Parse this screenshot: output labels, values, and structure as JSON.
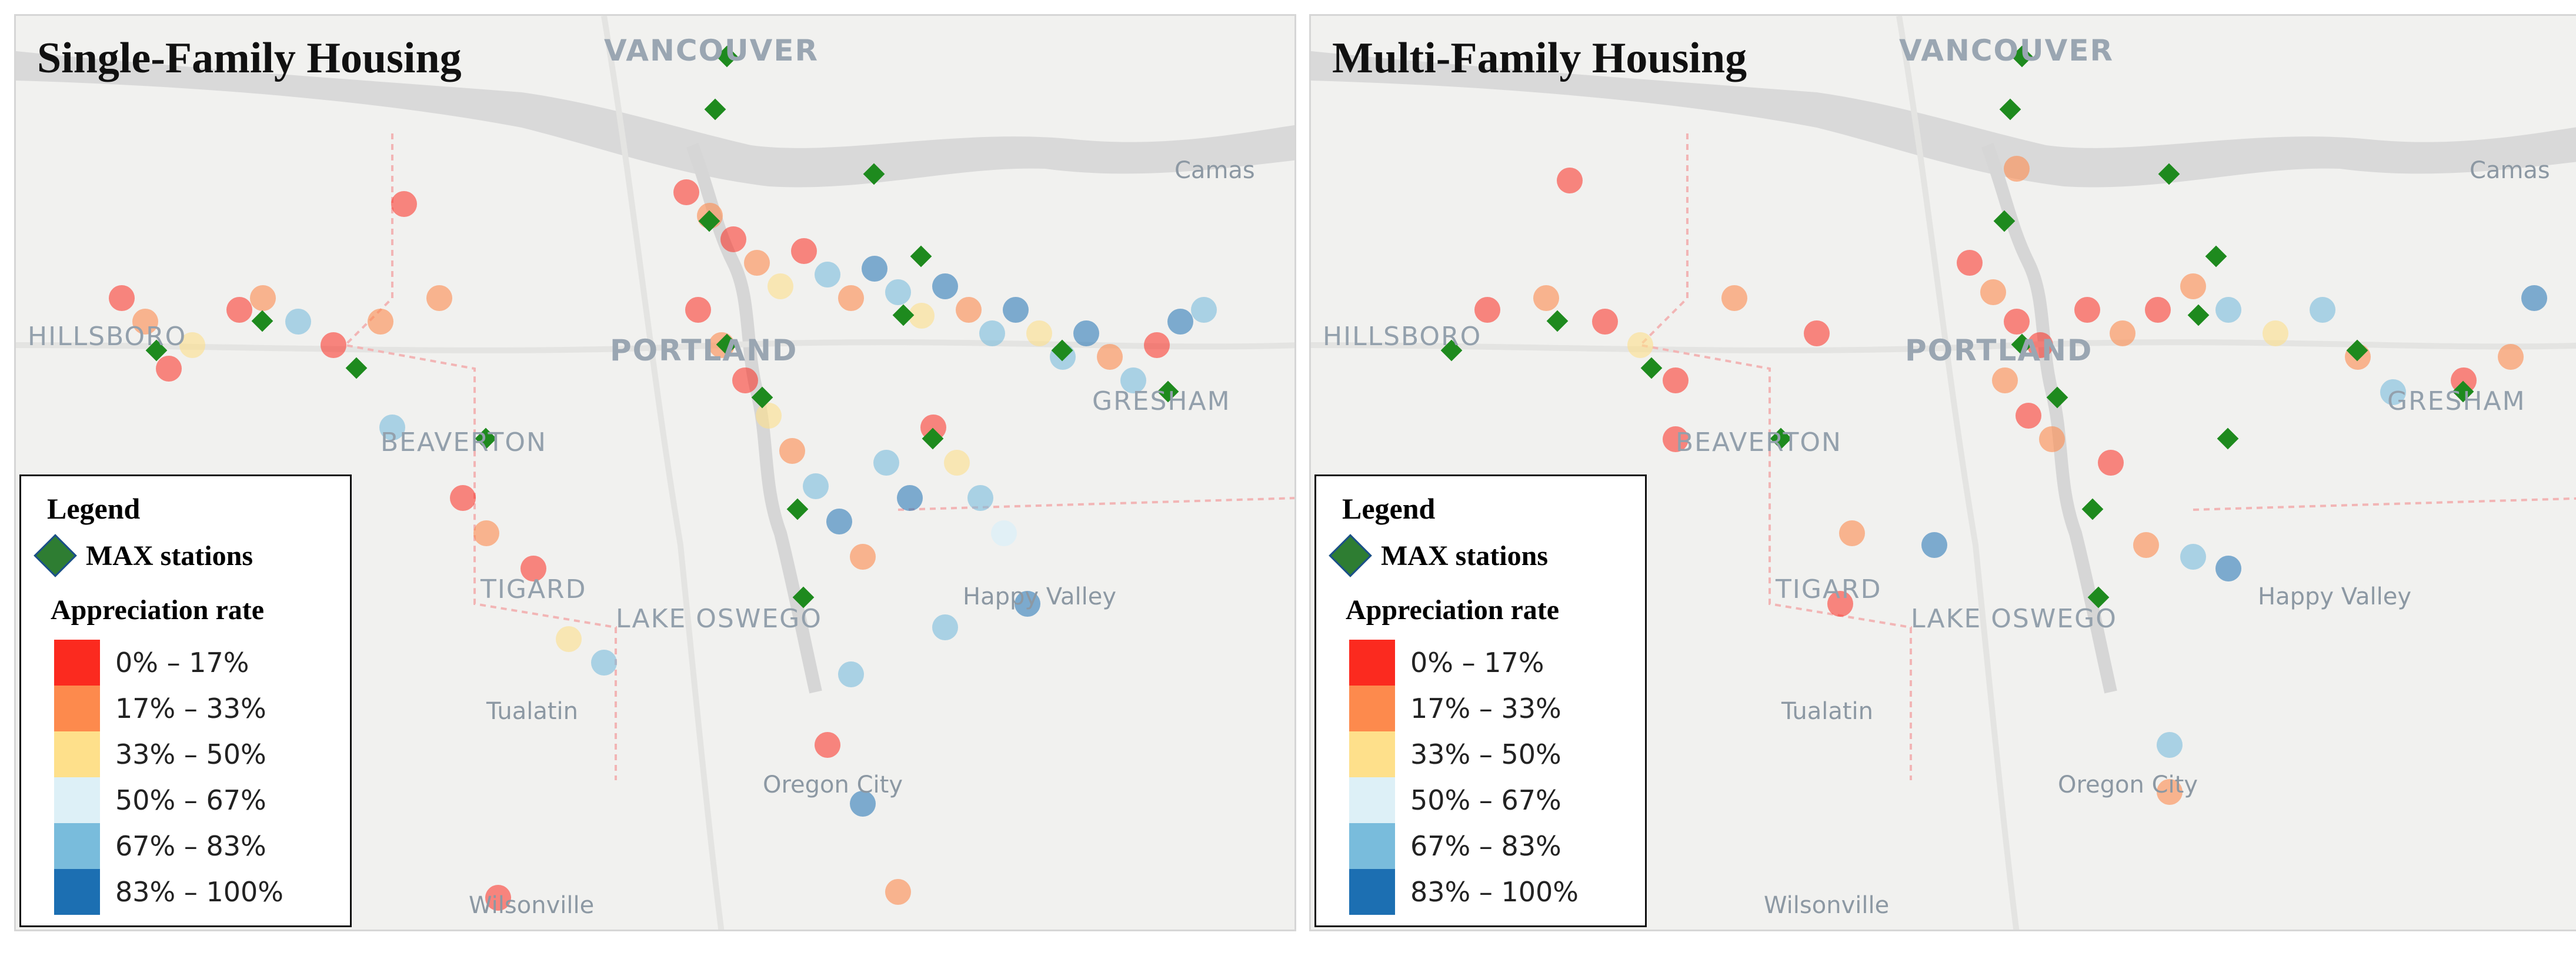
{
  "panels": [
    {
      "title": "Single-Family Housing",
      "cities": {
        "vancouver": "VANCOUVER",
        "camas": "Camas",
        "hillsboro": "HILLSBORO",
        "portland": "PORTLAND",
        "gresham": "GRESHAM",
        "beaverton": "BEAVERTON",
        "tigard": "TIGARD",
        "lake_oswego": "LAKE OSWEGO",
        "happy_valley": "Happy Valley",
        "tualatin": "Tualatin",
        "oregon_city": "Oregon City",
        "wilsonville": "Wilsonville"
      }
    },
    {
      "title": "Multi-Family Housing",
      "cities": {
        "vancouver": "VANCOUVER",
        "camas": "Camas",
        "hillsboro": "HILLSBORO",
        "portland": "PORTLAND",
        "gresham": "GRESHAM",
        "beaverton": "BEAVERTON",
        "tigard": "TIGARD",
        "lake_oswego": "LAKE OSWEGO",
        "happy_valley": "Happy Valley",
        "tualatin": "Tualatin",
        "oregon_city": "Oregon City",
        "wilsonville": "Wilsonville"
      }
    }
  ],
  "legend": {
    "title": "Legend",
    "station_label": "MAX stations",
    "rate_title": "Appreciation rate",
    "classes": [
      {
        "label": "0% – 17%",
        "color": "#fb2a1f"
      },
      {
        "label": "17% – 33%",
        "color": "#fd8a4d"
      },
      {
        "label": "33% – 50%",
        "color": "#fee08b"
      },
      {
        "label": "50% – 67%",
        "color": "#ddf0f7"
      },
      {
        "label": "67% – 83%",
        "color": "#79bcdc"
      },
      {
        "label": "83% – 100%",
        "color": "#1c6fb2"
      }
    ]
  },
  "colors": {
    "station_fill": "#1e8a1e",
    "river": "#d7d7d7",
    "county_line": "#f2b5b5"
  }
}
